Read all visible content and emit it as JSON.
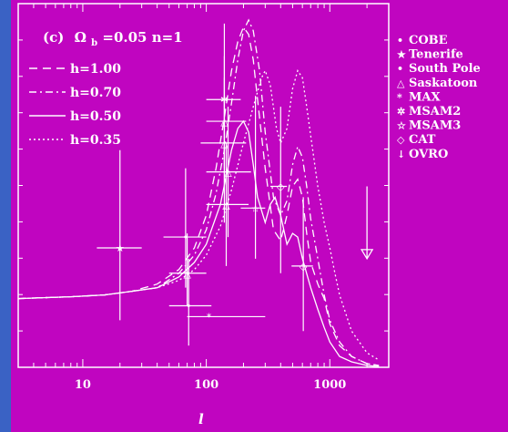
{
  "chart_data": {
    "type": "line",
    "panel_label": "(c)",
    "annotation_main": "Ω",
    "annotation_sub": "b",
    "annotation_rest": "=0.05  n=1",
    "xlabel": "l",
    "xscale": "log",
    "xlim": [
      3,
      3000
    ],
    "ylim": [
      0,
      1
    ],
    "x_ticks": [
      {
        "value": 10,
        "label": "10"
      },
      {
        "value": 100,
        "label": "100"
      },
      {
        "value": 1000,
        "label": "1000"
      }
    ],
    "series": [
      {
        "name": "h=1.00",
        "dash": "dash",
        "x": [
          3,
          8,
          15,
          25,
          40,
          60,
          80,
          100,
          120,
          140,
          160,
          180,
          200,
          220,
          240,
          260,
          300,
          350,
          400,
          450,
          500,
          550,
          600,
          650,
          700,
          800,
          900,
          1000,
          1200,
          1500,
          2000,
          2500
        ],
        "y": [
          0.19,
          0.195,
          0.2,
          0.21,
          0.23,
          0.27,
          0.33,
          0.42,
          0.55,
          0.69,
          0.82,
          0.9,
          0.94,
          0.92,
          0.85,
          0.74,
          0.55,
          0.38,
          0.35,
          0.42,
          0.5,
          0.52,
          0.47,
          0.37,
          0.29,
          0.23,
          0.19,
          0.12,
          0.06,
          0.03,
          0.01,
          0.005
        ]
      },
      {
        "name": "h=0.70",
        "dash": "dashdot",
        "x": [
          3,
          8,
          15,
          25,
          40,
          60,
          80,
          100,
          120,
          140,
          160,
          180,
          200,
          220,
          240,
          270,
          300,
          350,
          400,
          450,
          500,
          550,
          600,
          650,
          700,
          800,
          900,
          1000,
          1200,
          1500,
          2000,
          2500
        ],
        "y": [
          0.19,
          0.195,
          0.2,
          0.21,
          0.22,
          0.26,
          0.31,
          0.38,
          0.48,
          0.6,
          0.73,
          0.85,
          0.93,
          0.96,
          0.93,
          0.82,
          0.65,
          0.47,
          0.42,
          0.46,
          0.56,
          0.61,
          0.58,
          0.5,
          0.41,
          0.3,
          0.2,
          0.13,
          0.07,
          0.03,
          0.01,
          0.005
        ]
      },
      {
        "name": "h=0.50",
        "dash": "solid",
        "x": [
          3,
          8,
          15,
          25,
          40,
          60,
          80,
          100,
          130,
          160,
          180,
          200,
          220,
          240,
          260,
          300,
          330,
          360,
          400,
          450,
          500,
          550,
          600,
          700,
          800,
          900,
          1000,
          1200,
          1500,
          2000,
          2500
        ],
        "y": [
          0.19,
          0.195,
          0.2,
          0.21,
          0.22,
          0.25,
          0.29,
          0.34,
          0.45,
          0.6,
          0.66,
          0.68,
          0.65,
          0.56,
          0.47,
          0.4,
          0.45,
          0.47,
          0.42,
          0.34,
          0.37,
          0.36,
          0.3,
          0.22,
          0.16,
          0.11,
          0.07,
          0.03,
          0.015,
          0.005,
          0.002
        ]
      },
      {
        "name": "h=0.35",
        "dash": "dot",
        "x": [
          3,
          8,
          15,
          25,
          40,
          60,
          80,
          100,
          130,
          160,
          200,
          240,
          280,
          300,
          330,
          370,
          400,
          450,
          500,
          550,
          600,
          650,
          700,
          800,
          900,
          1000,
          1100,
          1200,
          1500,
          2000,
          2500
        ],
        "y": [
          0.19,
          0.195,
          0.2,
          0.21,
          0.22,
          0.24,
          0.27,
          0.31,
          0.39,
          0.49,
          0.62,
          0.72,
          0.8,
          0.82,
          0.78,
          0.66,
          0.62,
          0.66,
          0.77,
          0.82,
          0.8,
          0.72,
          0.64,
          0.5,
          0.4,
          0.33,
          0.26,
          0.2,
          0.1,
          0.04,
          0.02
        ]
      }
    ],
    "experiments": [
      {
        "name": "COBE",
        "symbol": "•"
      },
      {
        "name": "Tenerife",
        "symbol": "★"
      },
      {
        "name": "South Pole",
        "symbol": "•"
      },
      {
        "name": "Saskatoon",
        "symbol": "△"
      },
      {
        "name": "MAX",
        "symbol": "*"
      },
      {
        "name": "MSAM2",
        "symbol": "✲"
      },
      {
        "name": "MSAM3",
        "symbol": "☆"
      },
      {
        "name": "CAT",
        "symbol": "◇"
      },
      {
        "name": "OVRO",
        "symbol": "↓"
      }
    ],
    "points": [
      {
        "exp": "Tenerife",
        "x": 20,
        "y": 0.33,
        "xerr": [
          13,
          30
        ],
        "yerr": [
          0.13,
          0.6
        ]
      },
      {
        "exp": "South Pole",
        "x": 68,
        "y": 0.36,
        "xerr": [
          45,
          100
        ],
        "yerr": [
          0.22,
          0.55
        ]
      },
      {
        "exp": "South Pole",
        "x": 72,
        "y": 0.17,
        "xerr": [
          50,
          110
        ],
        "yerr": [
          0.06,
          0.3
        ]
      },
      {
        "exp": "MAX",
        "x": 105,
        "y": 0.14,
        "xerr": [
          70,
          300
        ],
        "yerr": [
          0.14,
          0.14
        ]
      },
      {
        "exp": "Saskatoon",
        "x": 70,
        "y": 0.26,
        "xerr": [
          50,
          100
        ],
        "yerr": [
          0.17,
          0.37
        ]
      },
      {
        "exp": "Saskatoon",
        "x": 140,
        "y": 0.68,
        "xerr": [
          100,
          210
        ],
        "yerr": [
          0.5,
          0.86
        ]
      },
      {
        "exp": "Saskatoon",
        "x": 140,
        "y": 0.62,
        "xerr": [
          90,
          210
        ],
        "yerr": [
          0.4,
          0.8
        ]
      },
      {
        "exp": "Saskatoon",
        "x": 150,
        "y": 0.54,
        "xerr": [
          100,
          230
        ],
        "yerr": [
          0.36,
          0.72
        ]
      },
      {
        "exp": "Saskatoon",
        "x": 145,
        "y": 0.45,
        "xerr": [
          100,
          220
        ],
        "yerr": [
          0.28,
          0.62
        ]
      },
      {
        "exp": "MSAM2",
        "x": 140,
        "y": 0.74,
        "xerr": [
          100,
          190
        ],
        "yerr": [
          0.55,
          0.95
        ]
      },
      {
        "exp": "MSAM3",
        "x": 250,
        "y": 0.44,
        "xerr": [
          190,
          300
        ],
        "yerr": [
          0.3,
          0.75
        ]
      },
      {
        "exp": "CAT",
        "x": 400,
        "y": 0.5,
        "xerr": [
          330,
          450
        ],
        "yerr": [
          0.26,
          0.72
        ]
      },
      {
        "exp": "CAT",
        "x": 610,
        "y": 0.28,
        "xerr": [
          490,
          730
        ],
        "yerr": [
          0.1,
          0.47
        ]
      },
      {
        "exp": "OVRO",
        "x": 2000,
        "y": 0.3,
        "xerr": [
          2000,
          2000
        ],
        "yerr": [
          0.3,
          0.5
        ]
      }
    ],
    "grid": false,
    "legend_placement": "top-left"
  }
}
